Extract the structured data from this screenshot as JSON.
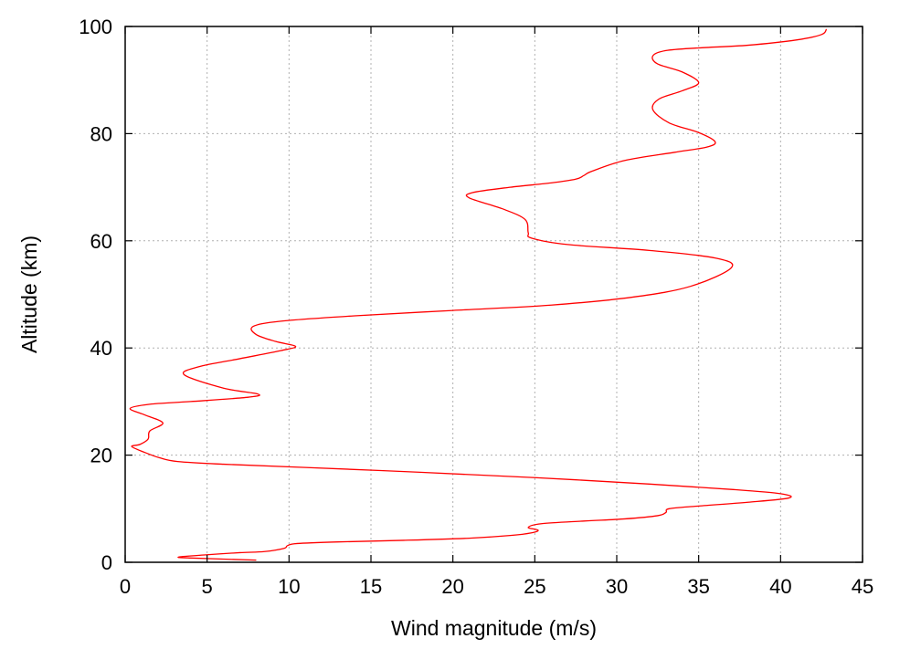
{
  "chart_data": {
    "type": "line",
    "title": "",
    "xlabel": "Wind magnitude (m/s)",
    "ylabel": "Altitude (km)",
    "xlim": [
      0,
      45
    ],
    "ylim": [
      0,
      100
    ],
    "xticks": [
      0,
      5,
      10,
      15,
      20,
      25,
      30,
      35,
      40,
      45
    ],
    "yticks": [
      0,
      20,
      40,
      60,
      80,
      100
    ],
    "xtick_labels": [
      "0",
      "5",
      "10",
      "15",
      "20",
      "25",
      "30",
      "35",
      "40",
      "45"
    ],
    "ytick_labels": [
      "0",
      "20",
      "40",
      "60",
      "80",
      "100"
    ],
    "grid": true,
    "legend": "none",
    "series": [
      {
        "color": "#ff0000",
        "x": [
          8.0,
          4.0,
          3.3,
          5.0,
          7.0,
          8.5,
          9.7,
          9.9,
          10.5,
          13.0,
          17.0,
          21.0,
          23.5,
          24.8,
          25.2,
          24.6,
          25.4,
          28.0,
          30.5,
          32.5,
          33.0,
          33.2,
          35.0,
          38.0,
          40.5,
          40.0,
          37.0,
          32.0,
          25.0,
          18.0,
          11.0,
          6.0,
          3.2,
          2.1,
          1.2,
          0.4,
          0.9,
          1.4,
          1.5,
          2.3,
          1.2,
          0.3,
          1.5,
          4.0,
          7.5,
          8.1,
          6.0,
          3.6,
          4.5,
          7.0,
          9.5,
          10.4,
          9.2,
          8.0,
          7.8,
          9.5,
          14.0,
          20.0,
          26.0,
          31.0,
          34.5,
          37.0,
          36.0,
          32.0,
          27.0,
          24.8,
          24.6,
          24.4,
          23.0,
          21.0,
          21.2,
          23.5,
          26.0,
          27.5,
          28.0,
          28.5,
          30.5,
          33.5,
          35.5,
          36.0,
          35.0,
          33.2,
          32.2,
          32.6,
          34.0,
          35.0,
          34.0,
          32.5,
          32.2,
          33.0,
          35.0,
          38.0,
          41.0,
          42.5,
          42.8
        ],
        "y": [
          0.4,
          0.8,
          1.0,
          1.4,
          1.8,
          2.0,
          2.6,
          3.1,
          3.5,
          3.8,
          4.1,
          4.5,
          5.0,
          5.5,
          6.0,
          6.5,
          7.2,
          7.7,
          8.1,
          8.7,
          9.3,
          10.0,
          10.5,
          11.2,
          12.0,
          12.8,
          13.6,
          14.6,
          15.8,
          16.8,
          17.7,
          18.3,
          18.8,
          19.5,
          20.5,
          21.6,
          22.0,
          23.0,
          24.5,
          26.0,
          27.5,
          28.7,
          29.5,
          30.0,
          30.8,
          31.4,
          32.5,
          35.0,
          36.5,
          38.0,
          39.5,
          40.3,
          41.2,
          42.5,
          44.0,
          45.0,
          46.0,
          47.0,
          48.0,
          49.5,
          51.5,
          55.0,
          56.8,
          58.2,
          59.3,
          60.5,
          61.5,
          64.0,
          66.0,
          68.0,
          69.0,
          70.0,
          70.8,
          71.5,
          72.2,
          73.0,
          75.0,
          76.5,
          77.5,
          78.5,
          80.2,
          82.0,
          84.5,
          86.5,
          88.0,
          89.5,
          91.5,
          93.0,
          94.5,
          95.5,
          96.0,
          96.5,
          97.5,
          98.5,
          99.5
        ]
      }
    ]
  }
}
